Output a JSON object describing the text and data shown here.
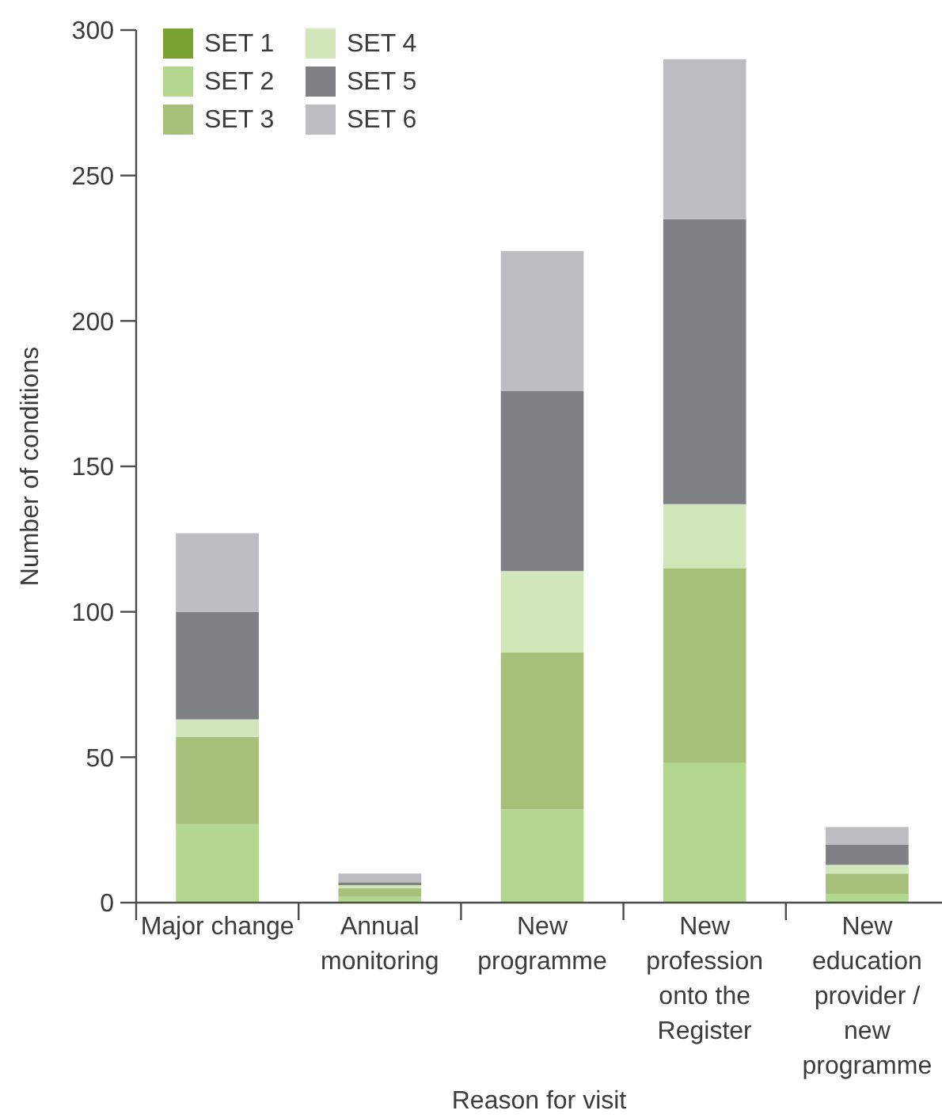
{
  "chart_data": {
    "type": "bar",
    "stacked": true,
    "xlabel": "Reason for visit",
    "ylabel": "Number of conditions",
    "categories": [
      "Major change",
      "Annual monitoring",
      "New programme",
      "New profession onto the Register",
      "New education provider / new programme"
    ],
    "series": [
      {
        "name": "SET 1",
        "color": "#78a22f",
        "values": [
          0,
          0,
          0,
          0,
          0
        ]
      },
      {
        "name": "SET 2",
        "color": "#b3d78f",
        "values": [
          27,
          2,
          32,
          48,
          3
        ]
      },
      {
        "name": "SET 3",
        "color": "#a6c07a",
        "values": [
          30,
          3,
          54,
          67,
          7
        ]
      },
      {
        "name": "SET 4",
        "color": "#d1e6b9",
        "values": [
          6,
          1,
          28,
          22,
          3
        ]
      },
      {
        "name": "SET 5",
        "color": "#808184",
        "values": [
          37,
          1,
          62,
          98,
          7
        ]
      },
      {
        "name": "SET 6",
        "color": "#bcbdc1",
        "values": [
          27,
          3,
          48,
          55,
          6
        ]
      }
    ],
    "ylim": [
      0,
      300
    ],
    "yticks": [
      0,
      50,
      100,
      150,
      200,
      250,
      300
    ],
    "grid": false,
    "legend": "top left"
  }
}
